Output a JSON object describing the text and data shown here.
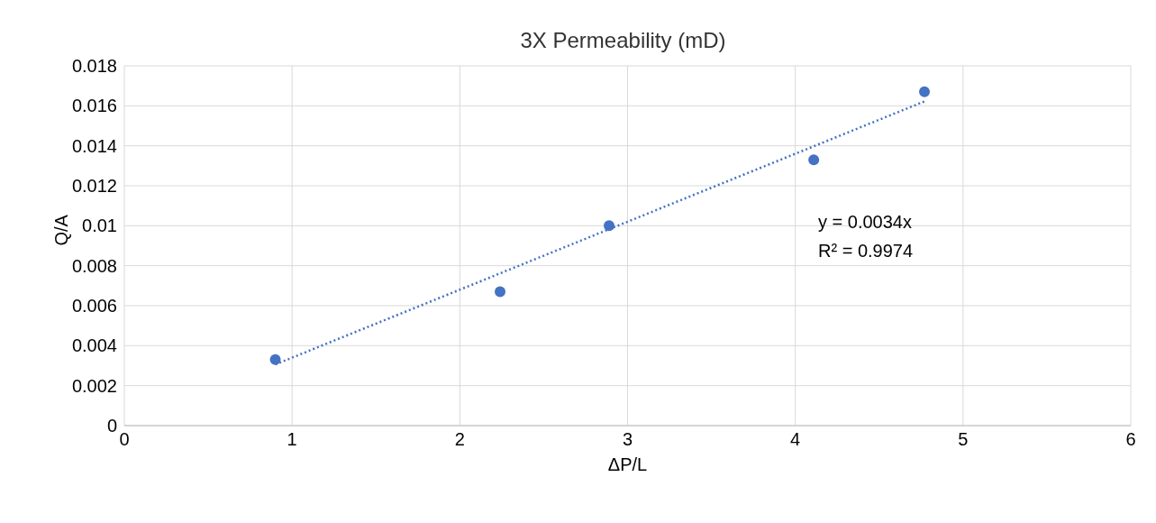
{
  "chart_data": {
    "type": "scatter",
    "title": "3X Permeability (mD)",
    "xlabel": "ΔP/L",
    "ylabel": "Q/A",
    "xlim": [
      0,
      6
    ],
    "xticks": [
      0,
      1,
      2,
      3,
      4,
      5,
      6
    ],
    "ylim": [
      0,
      0.018
    ],
    "yticks": [
      0,
      0.002,
      0.004,
      0.006,
      0.008,
      0.01,
      0.012,
      0.014,
      0.016,
      0.018
    ],
    "grid": true,
    "legend": false,
    "marker": "circle",
    "series": [
      {
        "color": "#4472c4",
        "x": [
          0.9,
          2.24,
          2.89,
          4.11,
          4.77
        ],
        "values": [
          0.0033,
          0.0067,
          0.01,
          0.0133,
          0.0167
        ]
      },
      {
        "type": "line",
        "color": "#4472c4",
        "line_style": "dotted",
        "marker": "none",
        "x": [
          0.9,
          4.77
        ],
        "values": [
          0.00306,
          0.01622
        ]
      }
    ],
    "annotations": [
      "y = 0.0034x",
      "R² = 0.9974"
    ]
  }
}
